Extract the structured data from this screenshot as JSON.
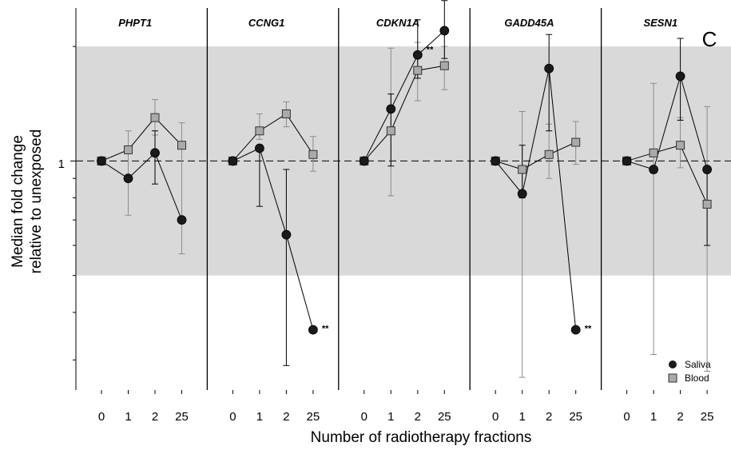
{
  "chart_data": {
    "type": "scatter",
    "panel_label": "C",
    "ylabel_line1": "Median fold change",
    "ylabel_line2": "relative to unexposed",
    "xlabel": "Number of radiotherapy fractions",
    "y_scale": "log",
    "y_tick_label": "1",
    "y_reference": 1,
    "ylim": [
      0.25,
      2.5
    ],
    "shaded_band": [
      0.5,
      2
    ],
    "categories": [
      "0",
      "1",
      "2",
      "25"
    ],
    "legend": {
      "position": "bottom-right",
      "entries": [
        {
          "name": "Saliva",
          "marker": "circle",
          "color": "#1a1a1a"
        },
        {
          "name": "Blood",
          "marker": "square",
          "color": "#aaaaaa"
        }
      ]
    },
    "colors": {
      "saliva": "#1a1a1a",
      "blood": "#aaaaaa",
      "band": "#d9d9da",
      "saliva_err": "#000000",
      "blood_err": "#8c8c8c"
    },
    "panels": [
      {
        "gene": "PHPT1",
        "series": [
          {
            "name": "Saliva",
            "values": [
              1.0,
              0.9,
              1.05,
              0.7
            ],
            "err_low": [
              null,
              null,
              0.87,
              null
            ],
            "err_high": [
              null,
              null,
              1.2,
              null
            ]
          },
          {
            "name": "Blood",
            "values": [
              1.0,
              1.07,
              1.3,
              1.1
            ],
            "err_low": [
              null,
              0.72,
              1.17,
              0.57
            ],
            "err_high": [
              null,
              1.2,
              1.45,
              1.26
            ]
          }
        ],
        "annotations": []
      },
      {
        "gene": "CCNG1",
        "series": [
          {
            "name": "Saliva",
            "values": [
              1.0,
              1.08,
              0.64,
              0.36
            ],
            "err_low": [
              null,
              0.76,
              0.29,
              null
            ],
            "err_high": [
              null,
              null,
              0.95,
              null
            ]
          },
          {
            "name": "Blood",
            "values": [
              1.0,
              1.2,
              1.33,
              1.04
            ],
            "err_low": [
              null,
              1.14,
              1.23,
              0.94
            ],
            "err_high": [
              null,
              1.33,
              1.43,
              1.16
            ]
          }
        ],
        "annotations": [
          {
            "text": "**",
            "category": "25",
            "y": 0.36
          }
        ]
      },
      {
        "gene": "CDKN1A",
        "series": [
          {
            "name": "Saliva",
            "values": [
              1.0,
              1.37,
              1.9,
              2.2
            ],
            "err_low": [
              null,
              0.97,
              1.65,
              1.86
            ],
            "err_high": [
              null,
              1.5,
              2.35,
              2.64
            ]
          },
          {
            "name": "Blood",
            "values": [
              1.0,
              1.2,
              1.73,
              1.78
            ],
            "err_low": [
              null,
              0.81,
              1.44,
              1.54
            ],
            "err_high": [
              null,
              1.98,
              2.05,
              2.0
            ]
          }
        ],
        "annotations": [
          {
            "text": "**",
            "category": "2",
            "y": 1.95
          }
        ]
      },
      {
        "gene": "GADD45A",
        "series": [
          {
            "name": "Saliva",
            "values": [
              1.0,
              0.82,
              1.75,
              0.36
            ],
            "err_low": [
              null,
              0.8,
              1.2,
              null
            ],
            "err_high": [
              null,
              1.1,
              2.15,
              null
            ]
          },
          {
            "name": "Blood",
            "values": [
              1.0,
              0.95,
              1.04,
              1.12
            ],
            "err_low": [
              null,
              0.27,
              0.9,
              0.98
            ],
            "err_high": [
              null,
              1.35,
              1.25,
              1.27
            ]
          }
        ],
        "annotations": [
          {
            "text": "**",
            "category": "25",
            "y": 0.36
          }
        ]
      },
      {
        "gene": "SESN1",
        "series": [
          {
            "name": "Saliva",
            "values": [
              1.0,
              0.95,
              1.67,
              0.95
            ],
            "err_low": [
              null,
              0.93,
              1.28,
              0.6
            ],
            "err_high": [
              null,
              null,
              2.1,
              null
            ]
          },
          {
            "name": "Blood",
            "values": [
              1.0,
              1.05,
              1.1,
              0.77
            ],
            "err_low": [
              null,
              0.31,
              0.96,
              0.28
            ],
            "err_high": [
              null,
              1.6,
              1.3,
              1.39
            ]
          }
        ],
        "annotations": []
      }
    ]
  }
}
